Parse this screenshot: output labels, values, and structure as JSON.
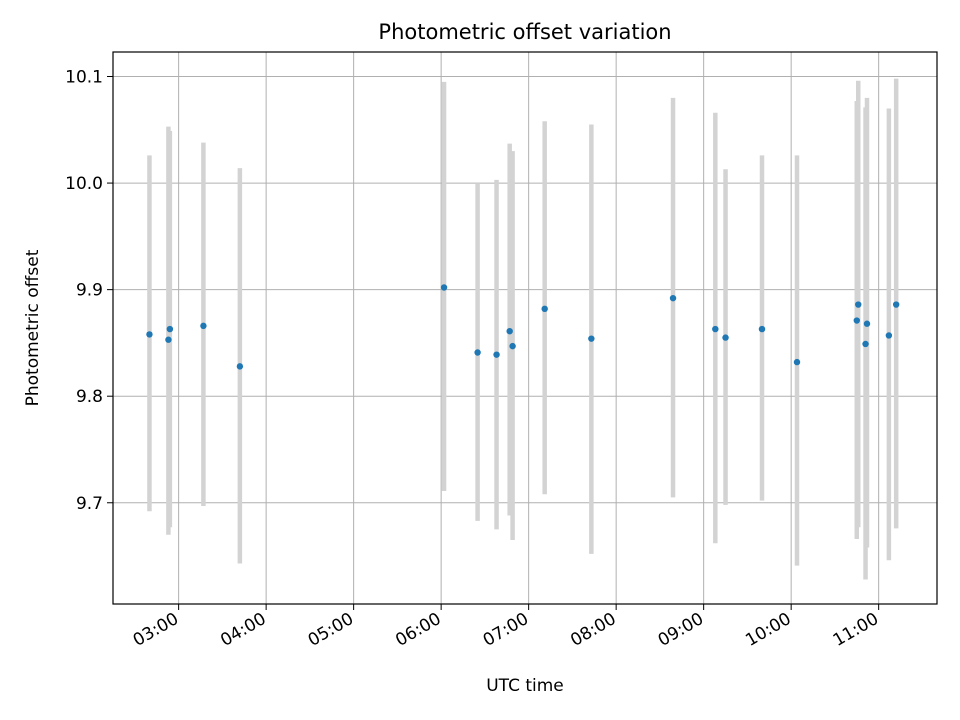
{
  "chart_data": {
    "type": "scatter",
    "title": "Photometric offset variation",
    "xlabel": "UTC time",
    "ylabel": "Photometric offset",
    "x_tick_labels": [
      "03:00",
      "04:00",
      "05:00",
      "06:00",
      "07:00",
      "08:00",
      "09:00",
      "10:00",
      "11:00"
    ],
    "y_tick_labels": [
      "9.7",
      "9.8",
      "9.9",
      "10.0",
      "10.1"
    ],
    "xlim": [
      "02:15",
      "11:40"
    ],
    "ylim": [
      9.605,
      10.123
    ],
    "grid": true,
    "marker_color": "#1f77b4",
    "errorbar_color": "#d3d3d3",
    "points": [
      {
        "x": "02:40",
        "y": 9.858,
        "lo": 9.692,
        "hi": 10.026
      },
      {
        "x": "02:53",
        "y": 9.853,
        "lo": 9.67,
        "hi": 10.053
      },
      {
        "x": "02:54",
        "y": 9.863,
        "lo": 9.677,
        "hi": 10.049
      },
      {
        "x": "03:17",
        "y": 9.866,
        "lo": 9.697,
        "hi": 10.038
      },
      {
        "x": "03:42",
        "y": 9.828,
        "lo": 9.643,
        "hi": 10.014
      },
      {
        "x": "06:02",
        "y": 9.902,
        "lo": 9.711,
        "hi": 10.095
      },
      {
        "x": "06:25",
        "y": 9.841,
        "lo": 9.683,
        "hi": 10.0
      },
      {
        "x": "06:38",
        "y": 9.839,
        "lo": 9.675,
        "hi": 10.003
      },
      {
        "x": "06:47",
        "y": 9.861,
        "lo": 9.688,
        "hi": 10.037
      },
      {
        "x": "06:49",
        "y": 9.847,
        "lo": 9.665,
        "hi": 10.03
      },
      {
        "x": "07:11",
        "y": 9.882,
        "lo": 9.708,
        "hi": 10.058
      },
      {
        "x": "07:43",
        "y": 9.854,
        "lo": 9.652,
        "hi": 10.055
      },
      {
        "x": "08:39",
        "y": 9.892,
        "lo": 9.705,
        "hi": 10.08
      },
      {
        "x": "09:08",
        "y": 9.863,
        "lo": 9.662,
        "hi": 10.066
      },
      {
        "x": "09:15",
        "y": 9.855,
        "lo": 9.698,
        "hi": 10.013
      },
      {
        "x": "09:40",
        "y": 9.863,
        "lo": 9.702,
        "hi": 10.026
      },
      {
        "x": "10:04",
        "y": 9.832,
        "lo": 9.641,
        "hi": 10.026
      },
      {
        "x": "10:45",
        "y": 9.871,
        "lo": 9.666,
        "hi": 10.077
      },
      {
        "x": "10:46",
        "y": 9.886,
        "lo": 9.677,
        "hi": 10.096
      },
      {
        "x": "10:51",
        "y": 9.849,
        "lo": 9.628,
        "hi": 10.071
      },
      {
        "x": "10:52",
        "y": 9.868,
        "lo": 9.658,
        "hi": 10.08
      },
      {
        "x": "11:07",
        "y": 9.857,
        "lo": 9.646,
        "hi": 10.07
      },
      {
        "x": "11:12",
        "y": 9.886,
        "lo": 9.676,
        "hi": 10.098
      }
    ]
  }
}
